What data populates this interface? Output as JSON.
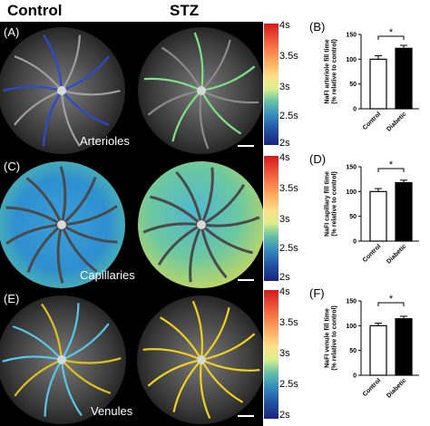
{
  "header": {
    "control": "Control",
    "stz": "STZ"
  },
  "panels": [
    {
      "label": "(A)",
      "caption": "Arterioles"
    },
    {
      "label": "(C)",
      "caption": "Capillaries"
    },
    {
      "label": "(E)",
      "caption": "Venules"
    }
  ],
  "colorbar": {
    "ticks": [
      "4s",
      "3.5s",
      "3s",
      "2.5s",
      "2s"
    ]
  },
  "chart_data": [
    {
      "panel": "(B)",
      "type": "bar",
      "categories": [
        "Control",
        "Diabetic"
      ],
      "values": [
        100,
        122
      ],
      "errors": [
        7,
        6
      ],
      "ylabel": "NaFI arteriole fill time\n(% relative to control)",
      "ylim": [
        0,
        150
      ],
      "yticks": [
        0,
        50,
        100,
        150
      ],
      "significance": "*"
    },
    {
      "panel": "(D)",
      "type": "bar",
      "categories": [
        "Control",
        "Diabetic"
      ],
      "values": [
        100,
        118
      ],
      "errors": [
        6,
        5
      ],
      "ylabel": "NaFI capillary fill time\n(% relative to control)",
      "ylim": [
        0,
        150
      ],
      "yticks": [
        0,
        50,
        100,
        150
      ],
      "significance": "*"
    },
    {
      "panel": "(F)",
      "type": "bar",
      "categories": [
        "Control",
        "Diabetic"
      ],
      "values": [
        100,
        114
      ],
      "errors": [
        5,
        5
      ],
      "ylabel": "NaFI venule fill time\n(% relative to control)",
      "ylim": [
        0,
        150
      ],
      "yticks": [
        0,
        50,
        100,
        150
      ],
      "significance": "*"
    }
  ]
}
